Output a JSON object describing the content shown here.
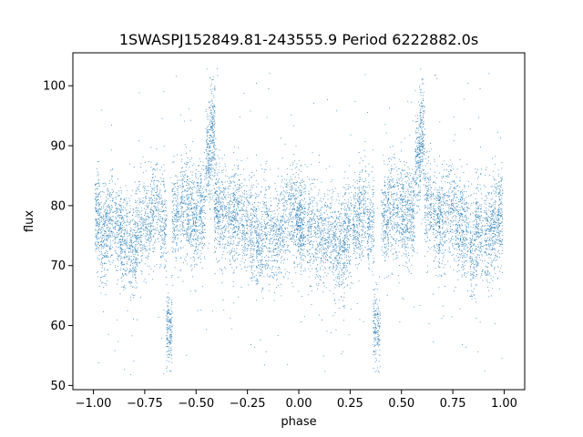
{
  "chart_data": {
    "type": "scatter",
    "title": "1SWASPJ152849.81-243555.9 Period 6222882.0s",
    "xlabel": "phase",
    "ylabel": "flux",
    "xlim": [
      -1.1,
      1.1
    ],
    "ylim": [
      49.3,
      105.5
    ],
    "xticks": [
      -1.0,
      -0.75,
      -0.5,
      -0.25,
      0.0,
      0.25,
      0.5,
      0.75,
      1.0
    ],
    "xtick_labels": [
      "−1.00",
      "−0.75",
      "−0.50",
      "−0.25",
      "0.00",
      "0.25",
      "0.50",
      "0.75",
      "1.00"
    ],
    "yticks": [
      50,
      60,
      70,
      80,
      90,
      100
    ],
    "ytick_labels": [
      "50",
      "60",
      "70",
      "80",
      "90",
      "100"
    ],
    "grid": false,
    "legend": "none",
    "marker_color": "#1f77b4",
    "series": [
      {
        "x": [
          -0.98,
          -0.95,
          -0.92,
          -0.88,
          -0.85,
          -0.81,
          -0.78,
          -0.74,
          -0.7,
          -0.66,
          -0.63,
          -0.6,
          -0.56,
          -0.53,
          -0.5,
          -0.47,
          -0.44,
          -0.42,
          -0.4,
          -0.37,
          -0.33,
          -0.3,
          -0.26,
          -0.22,
          -0.19,
          -0.15,
          -0.11,
          -0.07,
          -0.03,
          0.0,
          0.02,
          0.06,
          0.1,
          0.14,
          0.18,
          0.21,
          0.24,
          0.28,
          0.31,
          0.35,
          0.38,
          0.42,
          0.45,
          0.49,
          0.52,
          0.55,
          0.58,
          0.6,
          0.63,
          0.67,
          0.7,
          0.74,
          0.78,
          0.81,
          0.85,
          0.88,
          0.92,
          0.95,
          0.98
        ],
        "y": [
          78,
          75,
          77,
          76,
          74,
          72,
          76,
          77,
          79,
          77,
          60,
          78,
          80,
          79,
          78,
          79,
          88,
          92,
          80,
          78,
          77,
          79,
          77,
          76,
          73,
          76,
          75,
          77,
          79,
          78,
          77,
          76,
          74,
          75,
          73,
          72,
          76,
          77,
          79,
          77,
          60,
          78,
          80,
          79,
          78,
          79,
          88,
          92,
          80,
          78,
          77,
          79,
          77,
          76,
          73,
          76,
          75,
          77,
          78
        ],
        "spread_low": [
          70,
          68,
          69,
          69,
          66,
          63,
          67,
          69,
          71,
          69,
          55,
          70,
          71,
          70,
          70,
          71,
          80,
          84,
          72,
          70,
          69,
          70,
          69,
          68,
          65,
          68,
          67,
          69,
          71,
          70,
          69,
          68,
          66,
          67,
          65,
          63,
          67,
          69,
          71,
          69,
          55,
          70,
          71,
          70,
          70,
          71,
          80,
          84,
          72,
          70,
          69,
          70,
          69,
          68,
          65,
          68,
          67,
          69,
          70
        ],
        "spread_high": [
          85,
          83,
          84,
          84,
          82,
          80,
          83,
          84,
          86,
          84,
          68,
          85,
          88,
          87,
          86,
          87,
          96,
          100,
          88,
          86,
          85,
          86,
          85,
          84,
          81,
          84,
          83,
          85,
          87,
          86,
          85,
          84,
          82,
          83,
          81,
          80,
          83,
          84,
          86,
          84,
          68,
          85,
          88,
          87,
          86,
          87,
          96,
          100,
          88,
          86,
          85,
          86,
          85,
          84,
          81,
          84,
          83,
          85,
          86
        ]
      }
    ]
  }
}
